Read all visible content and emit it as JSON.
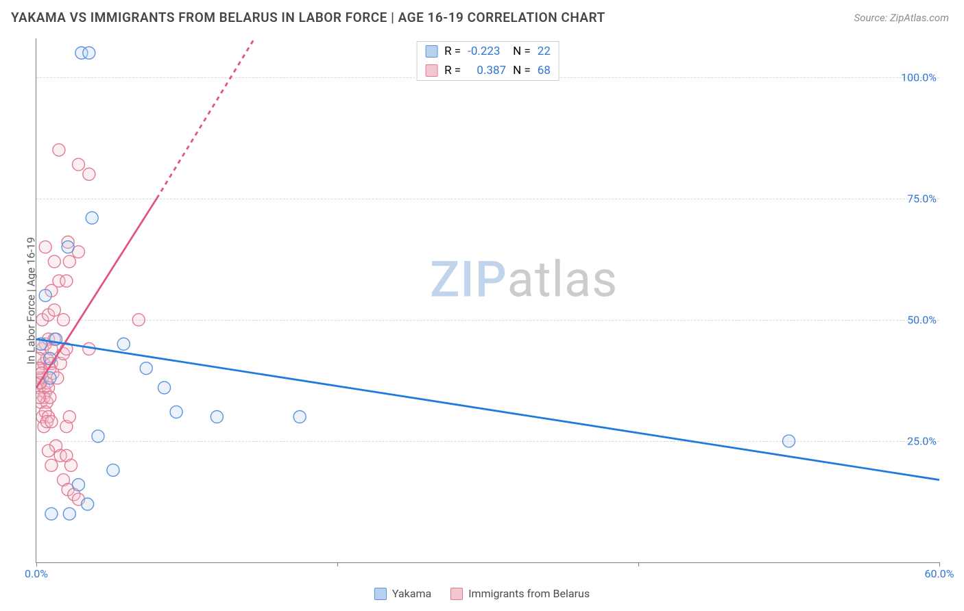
{
  "header": {
    "title": "YAKAMA VS IMMIGRANTS FROM BELARUS IN LABOR FORCE | AGE 16-19 CORRELATION CHART",
    "source": "Source: ZipAtlas.com"
  },
  "chart": {
    "type": "scatter",
    "ylabel": "In Labor Force | Age 16-19",
    "xlim": [
      0,
      60
    ],
    "ylim": [
      0,
      108
    ],
    "x_ticks": [
      0,
      20,
      40,
      60
    ],
    "x_tick_labels": [
      "0.0%",
      "",
      "",
      "60.0%"
    ],
    "y_grid": [
      25,
      50,
      75,
      100
    ],
    "y_tick_labels": [
      "25.0%",
      "50.0%",
      "75.0%",
      "100.0%"
    ],
    "axis_color": "#808080",
    "grid_color": "#d5d8db",
    "tick_label_color_x": "#2f76d6",
    "tick_label_color_y": "#2f76d6",
    "background_color": "#ffffff",
    "marker_radius": 9,
    "marker_stroke_width": 1.4,
    "marker_fill_opacity": 0.28,
    "trend_line_width": 2.8,
    "watermark": {
      "part1": "ZIP",
      "part2": "atlas"
    },
    "series_a": {
      "label": "Yakama",
      "color_fill": "#b9d0ef",
      "color_stroke": "#5b94da",
      "trend_color": "#1f7ae0",
      "R": "-0.223",
      "N": "22",
      "trend": {
        "x1": 0,
        "y1": 46,
        "x2": 60,
        "y2": 17
      },
      "points": [
        [
          0.3,
          45
        ],
        [
          0.6,
          55
        ],
        [
          0.9,
          42
        ],
        [
          0.9,
          38
        ],
        [
          1.3,
          46
        ],
        [
          3.0,
          105
        ],
        [
          3.5,
          105
        ],
        [
          3.7,
          71
        ],
        [
          2.1,
          65
        ],
        [
          4.1,
          26
        ],
        [
          5.1,
          19
        ],
        [
          2.8,
          16
        ],
        [
          1.0,
          10
        ],
        [
          5.8,
          45
        ],
        [
          7.3,
          40
        ],
        [
          8.5,
          36
        ],
        [
          9.3,
          31
        ],
        [
          12.0,
          30
        ],
        [
          17.5,
          30
        ],
        [
          2.2,
          10
        ],
        [
          3.4,
          12
        ],
        [
          50.0,
          25
        ]
      ]
    },
    "series_b": {
      "label": "Immigrants from Belarus",
      "color_fill": "#f3c6d0",
      "color_stroke": "#e07a94",
      "trend_color": "#e3557f",
      "R": "0.387",
      "N": "68",
      "trend_solid": {
        "x1": 0,
        "y1": 36,
        "x2": 8.0,
        "y2": 75
      },
      "trend_dash": {
        "x1": 8.0,
        "y1": 75,
        "x2": 14.5,
        "y2": 108
      },
      "points": [
        [
          0.2,
          36
        ],
        [
          0.3,
          37
        ],
        [
          0.4,
          38
        ],
        [
          0.5,
          36
        ],
        [
          0.6,
          35
        ],
        [
          0.7,
          37
        ],
        [
          0.8,
          36
        ],
        [
          0.3,
          40
        ],
        [
          0.5,
          41
        ],
        [
          0.7,
          42
        ],
        [
          0.9,
          40
        ],
        [
          1.0,
          41
        ],
        [
          1.1,
          39
        ],
        [
          0.4,
          44
        ],
        [
          0.6,
          45
        ],
        [
          0.8,
          46
        ],
        [
          1.0,
          44
        ],
        [
          1.2,
          46
        ],
        [
          0.3,
          33
        ],
        [
          0.5,
          34
        ],
        [
          0.7,
          33
        ],
        [
          0.9,
          34
        ],
        [
          0.4,
          30
        ],
        [
          0.6,
          31
        ],
        [
          0.8,
          30
        ],
        [
          0.5,
          28
        ],
        [
          0.7,
          29
        ],
        [
          1.0,
          29
        ],
        [
          1.4,
          38
        ],
        [
          1.6,
          41
        ],
        [
          1.8,
          43
        ],
        [
          2.0,
          44
        ],
        [
          0.4,
          50
        ],
        [
          0.8,
          51
        ],
        [
          1.2,
          52
        ],
        [
          1.8,
          50
        ],
        [
          1.0,
          56
        ],
        [
          1.5,
          58
        ],
        [
          2.0,
          58
        ],
        [
          1.2,
          62
        ],
        [
          2.2,
          62
        ],
        [
          2.8,
          64
        ],
        [
          2.1,
          66
        ],
        [
          0.6,
          65
        ],
        [
          2.0,
          28
        ],
        [
          2.2,
          30
        ],
        [
          3.5,
          80
        ],
        [
          1.5,
          85
        ],
        [
          2.8,
          82
        ],
        [
          1.3,
          24
        ],
        [
          1.6,
          22
        ],
        [
          2.0,
          22
        ],
        [
          2.3,
          20
        ],
        [
          1.8,
          17
        ],
        [
          2.1,
          15
        ],
        [
          2.5,
          14
        ],
        [
          2.8,
          13
        ],
        [
          1.0,
          20
        ],
        [
          0.8,
          23
        ],
        [
          6.8,
          50
        ],
        [
          3.5,
          44
        ],
        [
          0.2,
          42
        ],
        [
          0.3,
          45
        ],
        [
          0.2,
          38
        ],
        [
          0.2,
          34
        ],
        [
          0.15,
          40
        ],
        [
          0.25,
          37
        ],
        [
          0.35,
          39
        ]
      ]
    },
    "legend_bottom": {
      "a": "Yakama",
      "b": "Immigrants from Belarus"
    },
    "legend_top_labels": {
      "R": "R =",
      "N": "N ="
    }
  }
}
